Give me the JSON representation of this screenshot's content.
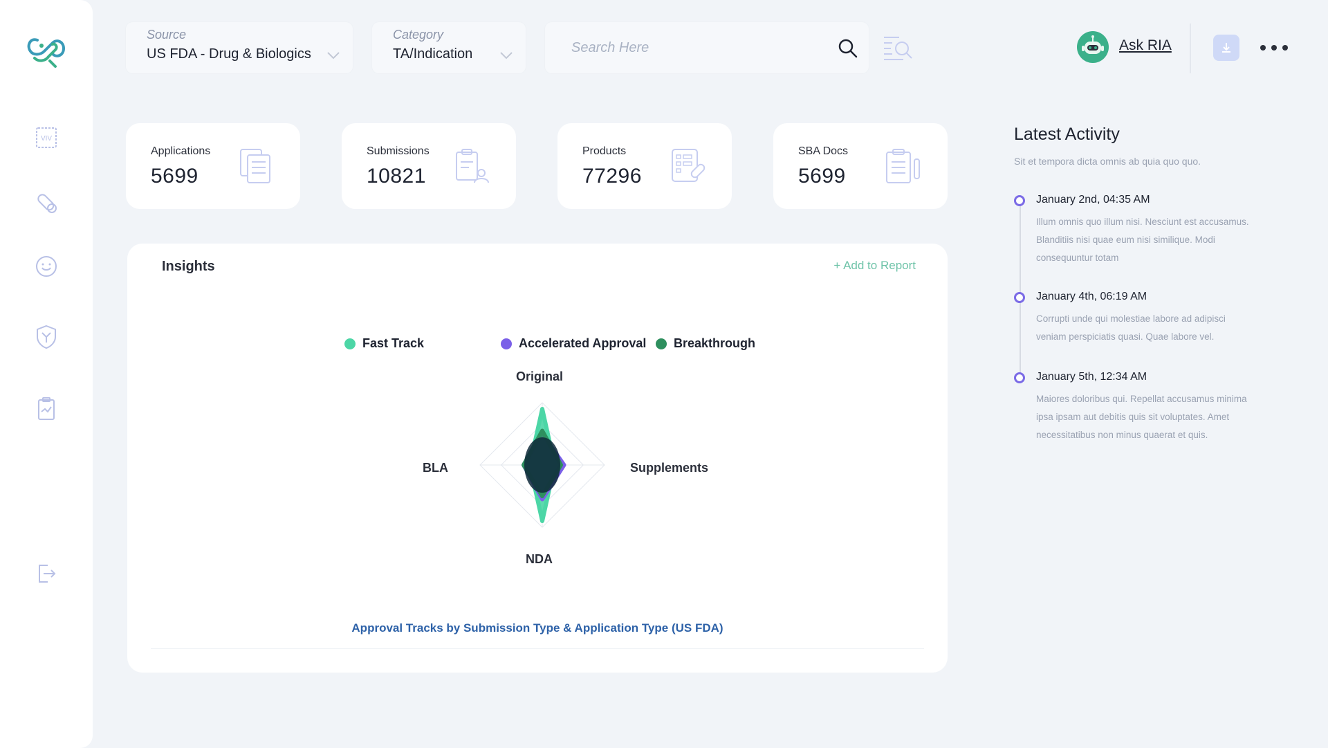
{
  "filters": {
    "source": {
      "label": "Source",
      "value": "US FDA - Drug & Biologics"
    },
    "category": {
      "label": "Category",
      "value": "TA/Indication"
    }
  },
  "search": {
    "placeholder": "Search Here"
  },
  "header": {
    "ask_ria": "Ask RIA"
  },
  "stats": [
    {
      "label": "Applications",
      "value": "5699",
      "icon": "documents-icon"
    },
    {
      "label": "Submissions",
      "value": "10821",
      "icon": "clipboard-user-icon"
    },
    {
      "label": "Products",
      "value": "77296",
      "icon": "pill-list-icon"
    },
    {
      "label": "SBA Docs",
      "value": "5699",
      "icon": "clipboard-pen-icon"
    }
  ],
  "insights": {
    "title": "Insights",
    "add_to_report": "+ Add to Report"
  },
  "chart_data": {
    "type": "radar",
    "title": "Approval Tracks by Submission Type & Application Type (US FDA)",
    "axes": [
      "Original",
      "Supplements",
      "NDA",
      "BLA"
    ],
    "series": [
      {
        "name": "Fast Track",
        "color": "#4cd6a6",
        "values": [
          0.9,
          0.2,
          0.9,
          0.2
        ]
      },
      {
        "name": "Accelerated Approval",
        "color": "#7a5fe8",
        "values": [
          0.5,
          0.35,
          0.55,
          0.3
        ]
      },
      {
        "name": "Breakthrough",
        "color": "#2e8f5e",
        "values": [
          0.55,
          0.3,
          0.5,
          0.3
        ]
      }
    ],
    "legend_position": "top"
  },
  "activity": {
    "title": "Latest Activity",
    "subtitle": "Sit et tempora dicta omnis ab quia quo quo.",
    "items": [
      {
        "date": "January 2nd, 04:35 AM",
        "text": "Illum omnis quo illum nisi. Nesciunt est accusamus. Blanditiis nisi quae eum nisi similique. Modi consequuntur totam"
      },
      {
        "date": "January 4th, 06:19 AM",
        "text": "Corrupti unde qui molestiae labore ad adipisci veniam perspiciatis quasi. Quae labore vel."
      },
      {
        "date": "January 5th, 12:34 AM",
        "text": "Maiores doloribus qui. Repellat accusamus minima ipsa ipsam aut debitis quis sit voluptates. Amet necessitatibus non minus quaerat et quis."
      }
    ]
  },
  "colors": {
    "accent": "#7b6be6",
    "brand": "#3bb08a",
    "link": "#6ec3a8"
  }
}
